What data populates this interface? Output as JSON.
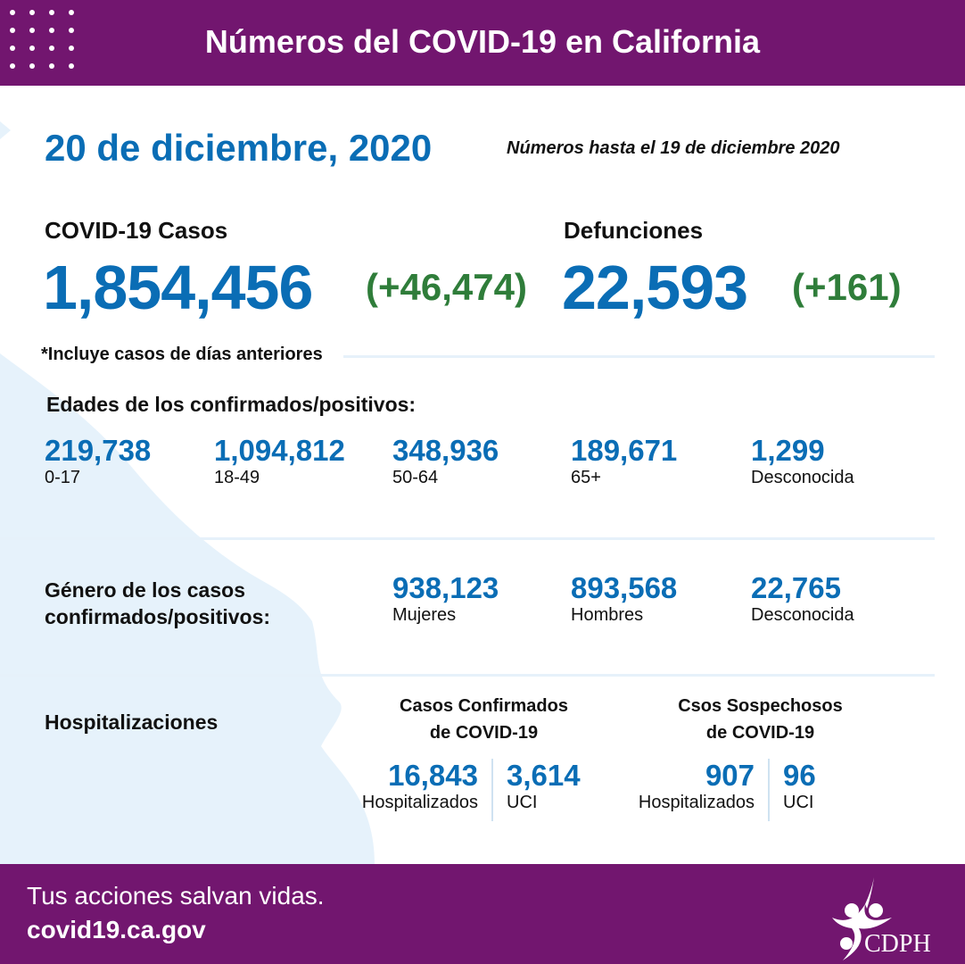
{
  "header": {
    "title": "Números del COVID-19 en California"
  },
  "date": "20 de diciembre, 2020",
  "as_of": "Números hasta el 19 de diciembre 2020",
  "cases": {
    "label": "COVID-19 Casos",
    "total": "1,854,456",
    "delta": "(+46,474)",
    "note": "*Incluye casos de días anteriores"
  },
  "deaths": {
    "label": "Defunciones",
    "total": "22,593",
    "delta": "(+161)"
  },
  "ages": {
    "title": "Edades de los confirmados/positivos:",
    "items": [
      {
        "value": "219,738",
        "label": "0-17"
      },
      {
        "value": "1,094,812",
        "label": "18-49"
      },
      {
        "value": "348,936",
        "label": "50-64"
      },
      {
        "value": "189,671",
        "label": "65+"
      },
      {
        "value": "1,299",
        "label": "Desconocida"
      }
    ]
  },
  "gender": {
    "title_line1": "Género de los casos",
    "title_line2": "confirmados/positivos:",
    "items": [
      {
        "value": "938,123",
        "label": "Mujeres"
      },
      {
        "value": "893,568",
        "label": "Hombres"
      },
      {
        "value": "22,765",
        "label": "Desconocida"
      }
    ]
  },
  "hosp": {
    "title": "Hospitalizaciones",
    "confirmed": {
      "title_line1": "Casos Confirmados",
      "title_line2": "de COVID-19",
      "hospitalized": "16,843",
      "hospitalized_label": "Hospitalizados",
      "icu": "3,614",
      "icu_label": "UCI"
    },
    "suspected": {
      "title_line1": "Csos Sospechosos",
      "title_line2": "de COVID-19",
      "hospitalized": "907",
      "hospitalized_label": "Hospitalizados",
      "icu": "96",
      "icu_label": "UCI"
    }
  },
  "footer": {
    "tagline": "Tus acciones salvan vidas.",
    "url": "covid19.ca.gov",
    "logo_text": "CDPH"
  },
  "colors": {
    "purple": "#72166f",
    "blue": "#0a6db5",
    "green": "#2f7d3a",
    "map": "#e6f2fb"
  }
}
